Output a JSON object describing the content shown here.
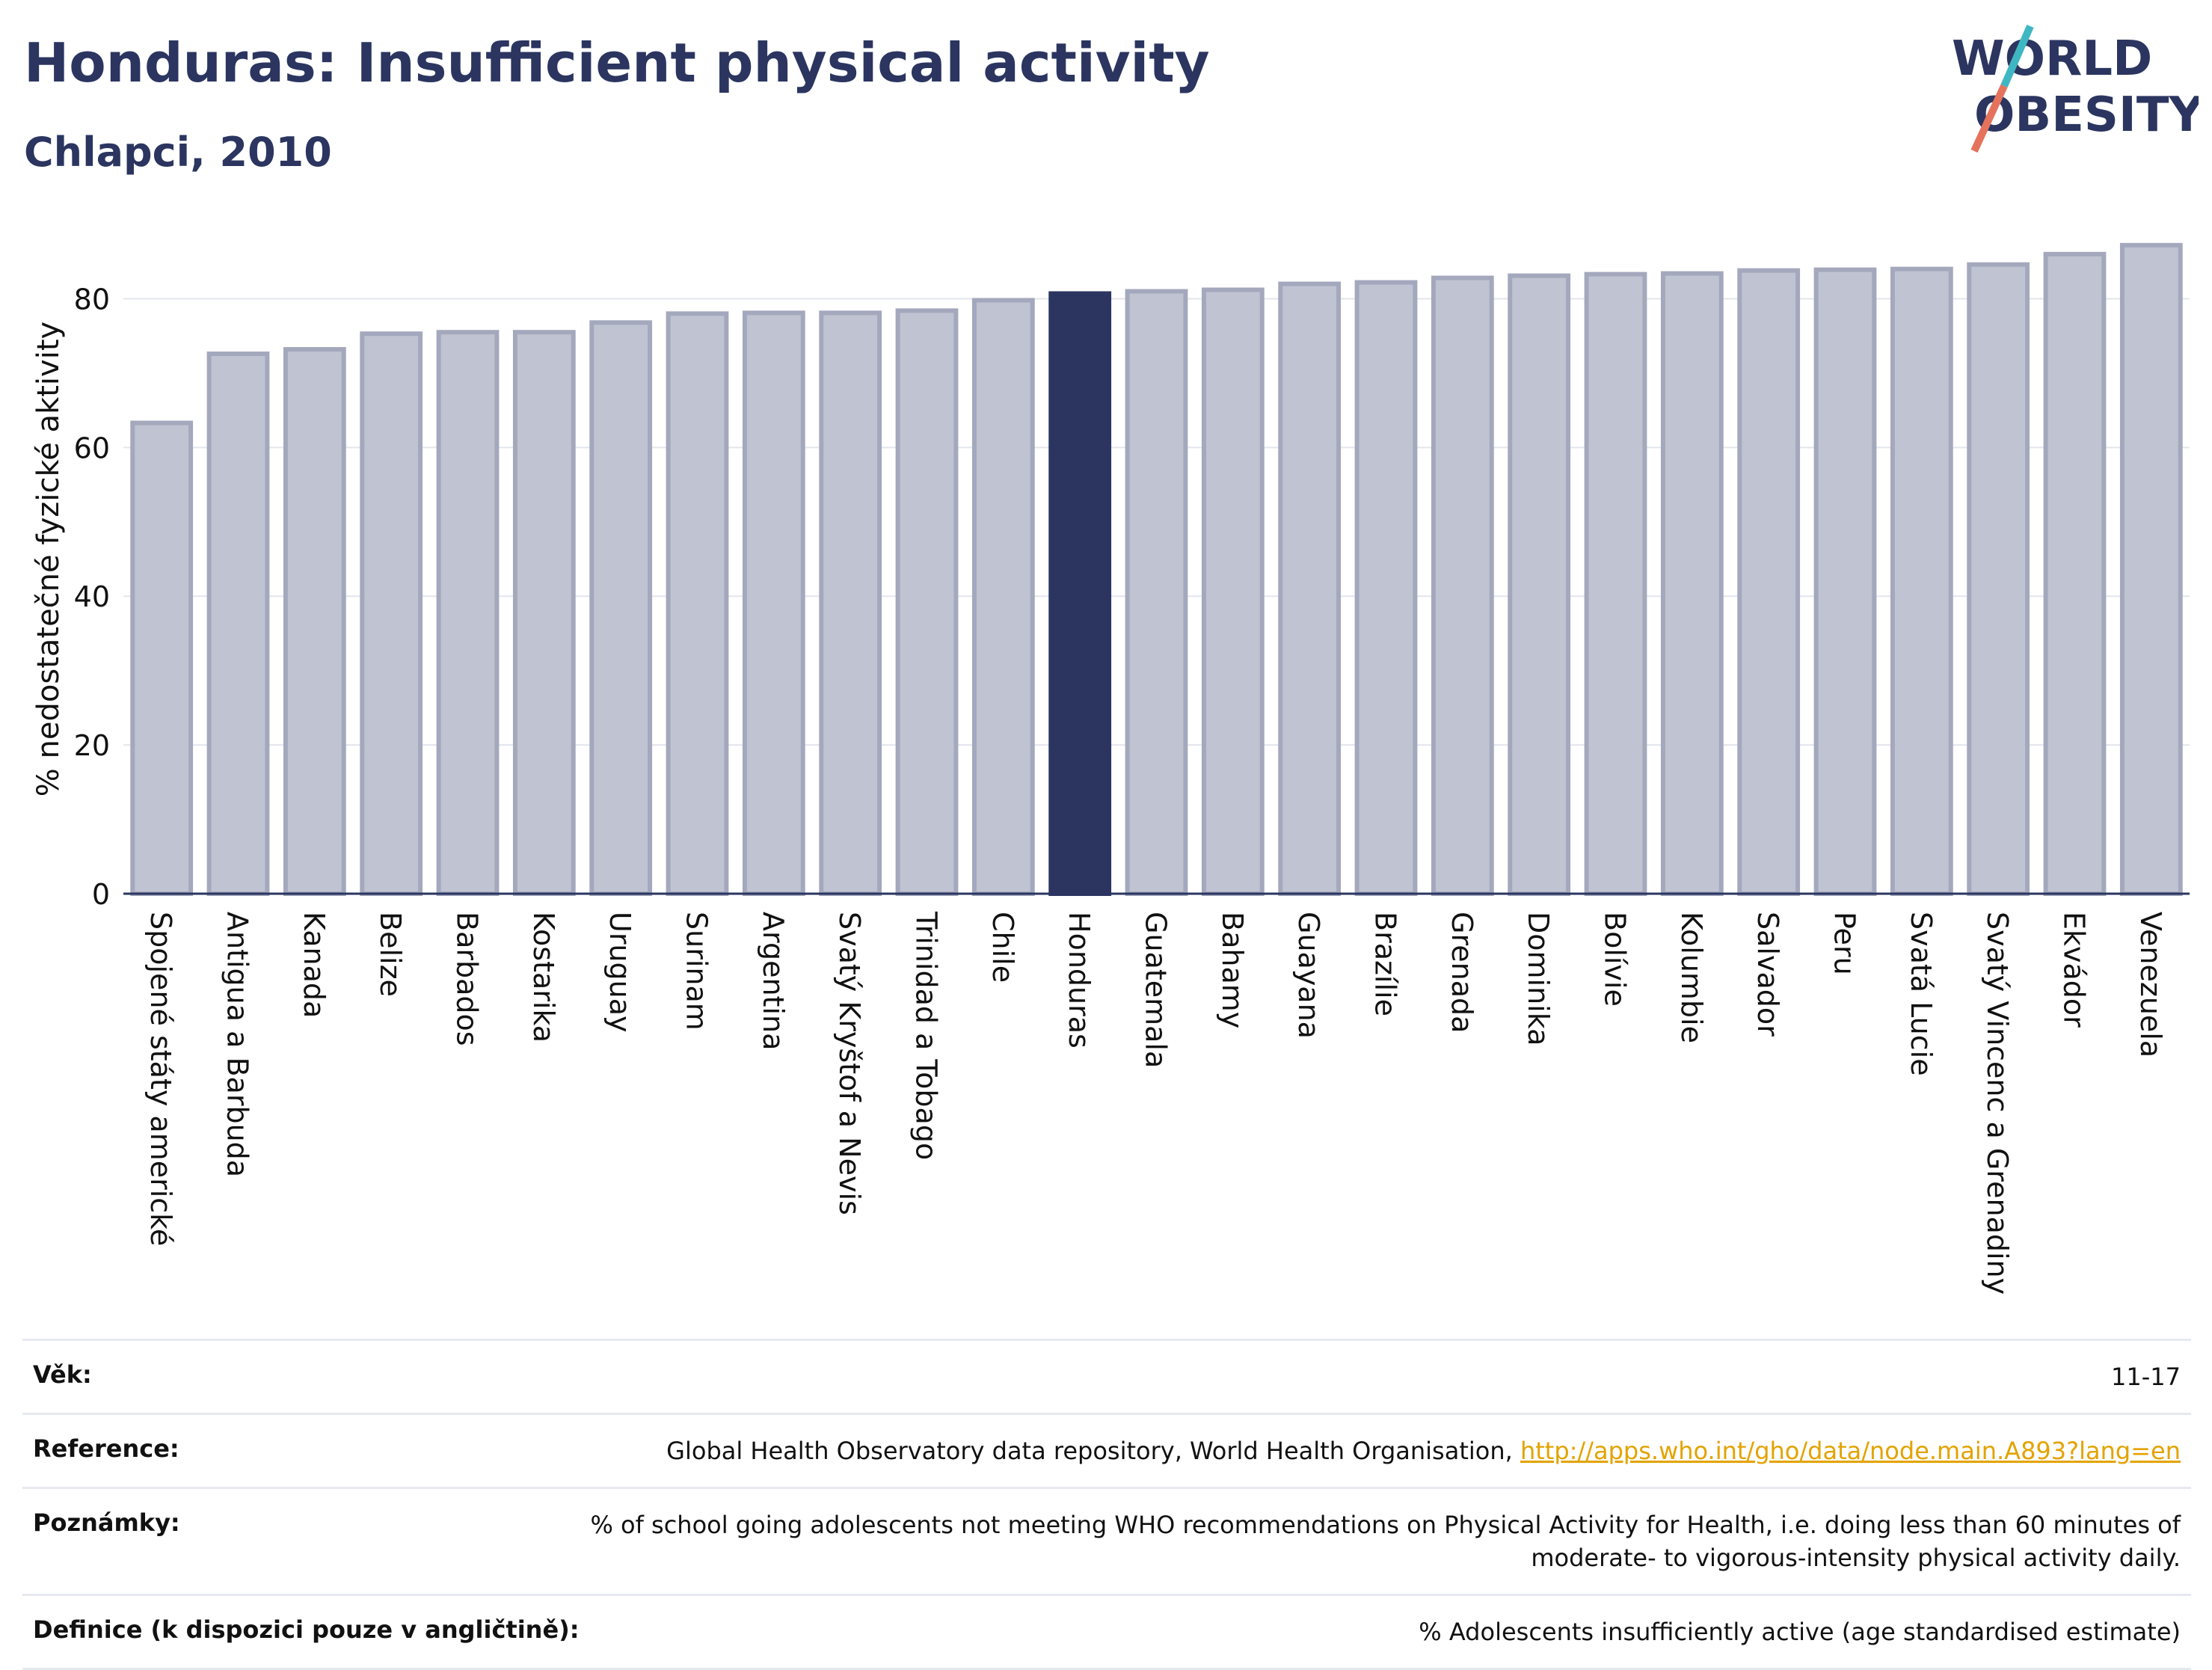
{
  "header": {
    "title": "Honduras: Insufficient physical activity",
    "subtitle": "Chlapci, 2010"
  },
  "logo": {
    "line1": "WORLD",
    "line2": "OBESITY"
  },
  "colors": {
    "bar": "#c0c3d1",
    "bar_stroke": "#a4a8bd",
    "highlight": "#2b3560",
    "text": "#2b3560"
  },
  "chart_data": {
    "type": "bar",
    "ylabel": "% nedostatečné fyzické aktivity",
    "ylim": [
      0,
      90
    ],
    "yticks": [
      0,
      20,
      40,
      60,
      80
    ],
    "grid": true,
    "highlight": "Honduras",
    "categories": [
      "Spojené státy americké",
      "Antigua a Barbuda",
      "Kanada",
      "Belize",
      "Barbados",
      "Kostarika",
      "Uruguay",
      "Surinam",
      "Argentina",
      "Svatý Kryštof a Nevis",
      "Trinidad a Tobago",
      "Chile",
      "Honduras",
      "Guatemala",
      "Bahamy",
      "Guayana",
      "Brazílie",
      "Grenada",
      "Dominika",
      "Bolívie",
      "Kolumbie",
      "Salvador",
      "Peru",
      "Svatá Lucie",
      "Svatý Vincenc a Grenadiny",
      "Ekvádor",
      "Venezuela"
    ],
    "values": [
      63.3,
      72.6,
      73.2,
      75.3,
      75.5,
      75.5,
      76.8,
      78.0,
      78.1,
      78.1,
      78.4,
      79.8,
      80.7,
      81.0,
      81.2,
      82.0,
      82.2,
      82.8,
      83.1,
      83.3,
      83.4,
      83.8,
      83.9,
      84.0,
      84.6,
      86.0,
      87.2
    ]
  },
  "info": {
    "age_label": "Věk:",
    "age_value": "11-17",
    "reference_label": "Reference:",
    "reference_text": "Global Health Observatory data repository, World Health Organisation, ",
    "reference_link": "http://apps.who.int/gho/data/node.main.A893?lang=en",
    "notes_label": "Poznámky:",
    "notes_value": "% of school going adolescents not meeting WHO recommendations on Physical Activity for Health, i.e. doing less than 60 minutes of moderate- to vigorous-intensity physical activity daily.",
    "definition_label": "Definice (k dispozici pouze v angličtině):",
    "definition_value": "% Adolescents insufficiently active (age standardised estimate)"
  }
}
